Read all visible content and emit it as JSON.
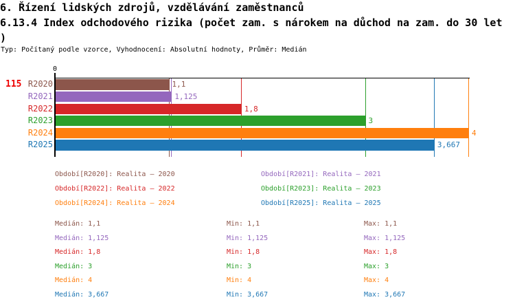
{
  "header": {
    "line1": "6. Řízení lidských zdrojů, vzdělávání zaměstnanců",
    "line2": "6.13.4 Index odchodového rizika (počet zam. s nárokem na důchod na zam. do 30 let",
    "line2_wrap": ")",
    "meta": "Typ: Počítaný podle vzorce, Vyhodnocení: Absolutní hodnoty, Průměr: Medián"
  },
  "row_id": {
    "label": "115",
    "color": "#ee0000"
  },
  "chart_data": {
    "type": "bar",
    "orientation": "horizontal",
    "title": "6.13.4 Index odchodového rizika (počet zam. s nárokem na důchod na zam. do 30 let)",
    "categories": [
      "R2020",
      "R2021",
      "R2022",
      "R2023",
      "R2024",
      "R2025"
    ],
    "values": [
      1.1,
      1.125,
      1.8,
      3,
      4,
      3.667
    ],
    "value_labels": [
      "1,1",
      "1,125",
      "1,8",
      "3",
      "4",
      "3,667"
    ],
    "colors": [
      "#8c564b",
      "#9467bd",
      "#d62728",
      "#2ca02c",
      "#ff7f0e",
      "#1f77b4"
    ],
    "median_lines": [
      1.1,
      1.125,
      1.8,
      3,
      4,
      3.667
    ],
    "xlabel": "",
    "ylabel": "",
    "xlim": [
      0,
      4
    ],
    "x_tick_labels": [
      "0"
    ],
    "grid": false,
    "legend_position": "bottom",
    "axis_color": "#000000"
  },
  "legend": {
    "items": [
      {
        "label": "Období[R2020]: Realita – 2020",
        "color": "#8c564b"
      },
      {
        "label": "Období[R2021]: Realita – 2021",
        "color": "#9467bd"
      },
      {
        "label": "Období[R2022]: Realita – 2022",
        "color": "#d62728"
      },
      {
        "label": "Období[R2023]: Realita – 2023",
        "color": "#2ca02c"
      },
      {
        "label": "Období[R2024]: Realita – 2024",
        "color": "#ff7f0e"
      },
      {
        "label": "Období[R2025]: Realita – 2025",
        "color": "#1f77b4"
      }
    ]
  },
  "stats": {
    "rows": [
      {
        "median": "Medián: 1,1",
        "min": "Min: 1,1",
        "max": "Max: 1,1",
        "color": "#8c564b"
      },
      {
        "median": "Medián: 1,125",
        "min": "Min: 1,125",
        "max": "Max: 1,125",
        "color": "#9467bd"
      },
      {
        "median": "Medián: 1,8",
        "min": "Min: 1,8",
        "max": "Max: 1,8",
        "color": "#d62728"
      },
      {
        "median": "Medián: 3",
        "min": "Min: 3",
        "max": "Max: 3",
        "color": "#2ca02c"
      },
      {
        "median": "Medián: 4",
        "min": "Min: 4",
        "max": "Max: 4",
        "color": "#ff7f0e"
      },
      {
        "median": "Medián: 3,667",
        "min": "Min: 3,667",
        "max": "Max: 3,667",
        "color": "#1f77b4"
      }
    ]
  }
}
